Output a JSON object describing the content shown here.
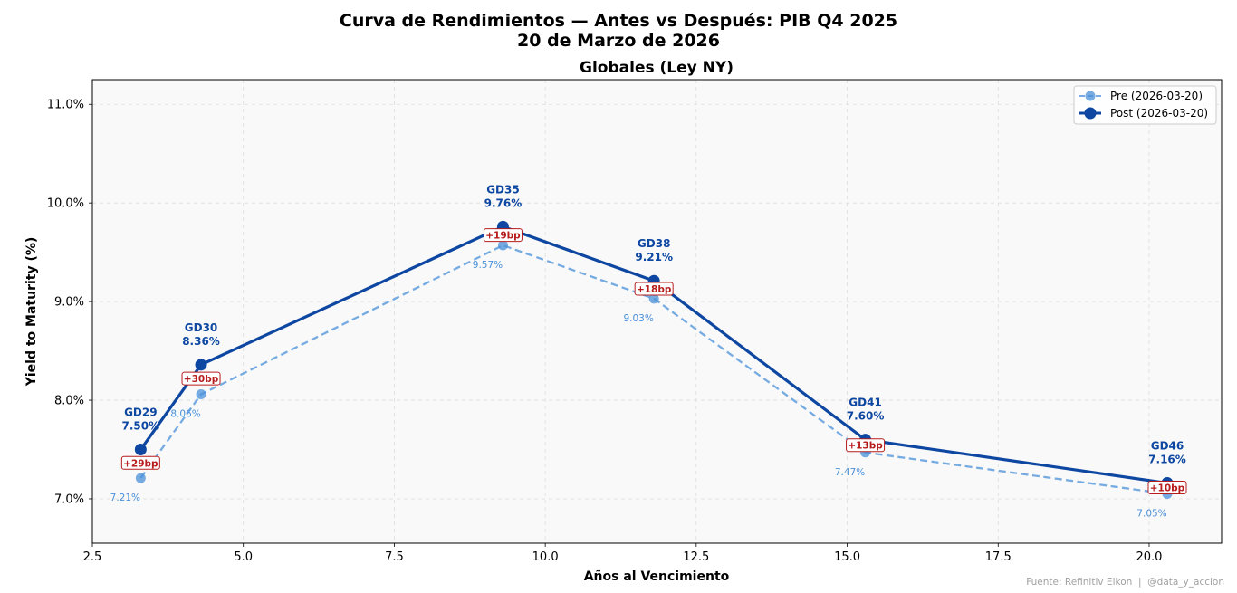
{
  "chart_data": {
    "type": "line",
    "suptitle": "Curva de Rendimientos — Antes vs Después: PIB Q4 2025",
    "subtitle": "20 de Marzo de 2026",
    "title": "Globales (Ley NY)",
    "xlabel": "Años al Vencimiento",
    "ylabel": "Yield to Maturity (%)",
    "xlim": [
      2.5,
      21.2
    ],
    "ylim": [
      6.55,
      11.25
    ],
    "xticks": [
      2.5,
      5.0,
      7.5,
      10.0,
      12.5,
      15.0,
      17.5,
      20.0
    ],
    "xtick_labels": [
      "2.5",
      "5.0",
      "7.5",
      "10.0",
      "12.5",
      "15.0",
      "17.5",
      "20.0"
    ],
    "yticks": [
      7.0,
      8.0,
      9.0,
      10.0,
      11.0
    ],
    "ytick_labels": [
      "7.0%",
      "8.0%",
      "9.0%",
      "10.0%",
      "11.0%"
    ],
    "grid": true,
    "legend_position": "top-right",
    "bonds": [
      "GD29",
      "GD30",
      "GD35",
      "GD38",
      "GD41",
      "GD46"
    ],
    "x": [
      3.3,
      4.3,
      9.3,
      11.8,
      15.3,
      20.3
    ],
    "series": [
      {
        "name": "Pre (2026-03-20)",
        "values": [
          7.21,
          8.06,
          9.57,
          9.03,
          7.47,
          7.05
        ],
        "labels": [
          "7.21%",
          "8.06%",
          "9.57%",
          "9.03%",
          "7.47%",
          "7.05%"
        ],
        "color": "#4a90d9",
        "style": "dashed"
      },
      {
        "name": "Post (2026-03-20)",
        "values": [
          7.5,
          8.36,
          9.76,
          9.21,
          7.6,
          7.16
        ],
        "labels": [
          "7.50%",
          "8.36%",
          "9.76%",
          "9.21%",
          "7.60%",
          "7.16%"
        ],
        "color": "#0d47a1",
        "style": "solid"
      }
    ],
    "changes": [
      "+29bp",
      "+30bp",
      "+19bp",
      "+18bp",
      "+13bp",
      "+10bp"
    ],
    "change_color": "#b71c1c"
  },
  "footer": {
    "source": "Fuente: Refinitiv Eikon  |  @data_y_accion"
  }
}
